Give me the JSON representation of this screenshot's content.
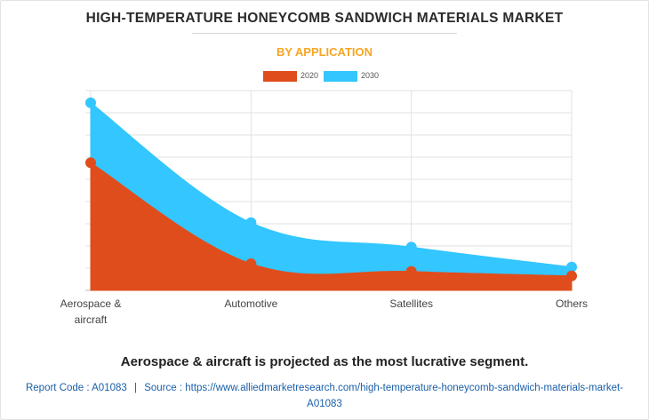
{
  "header": {
    "title": "HIGH-TEMPERATURE HONEYCOMB SANDWICH MATERIALS MARKET",
    "subtitle": "BY APPLICATION"
  },
  "chart_data": {
    "type": "area",
    "categories": [
      "Aerospace & aircraft",
      "Automotive",
      "Satellites",
      "Others"
    ],
    "series": [
      {
        "name": "2020",
        "values": [
          5.75,
          1.2,
          0.85,
          0.65
        ],
        "color": "#e04d1c"
      },
      {
        "name": "2030",
        "values": [
          8.45,
          3.05,
          1.95,
          1.05
        ],
        "color": "#33c6ff"
      }
    ],
    "ylim": [
      0,
      9
    ],
    "y_tick_labels": false,
    "grid": true,
    "legend": "top-center",
    "xlabel": "",
    "ylabel": ""
  },
  "footer": {
    "caption": "Aerospace & aircraft is projected as the most lucrative segment.",
    "source_prefix": "Report Code : A01083",
    "separator": "|",
    "source": "Source : https://www.alliedmarketresearch.com/high-temperature-honeycomb-sandwich-materials-market-A01083"
  }
}
